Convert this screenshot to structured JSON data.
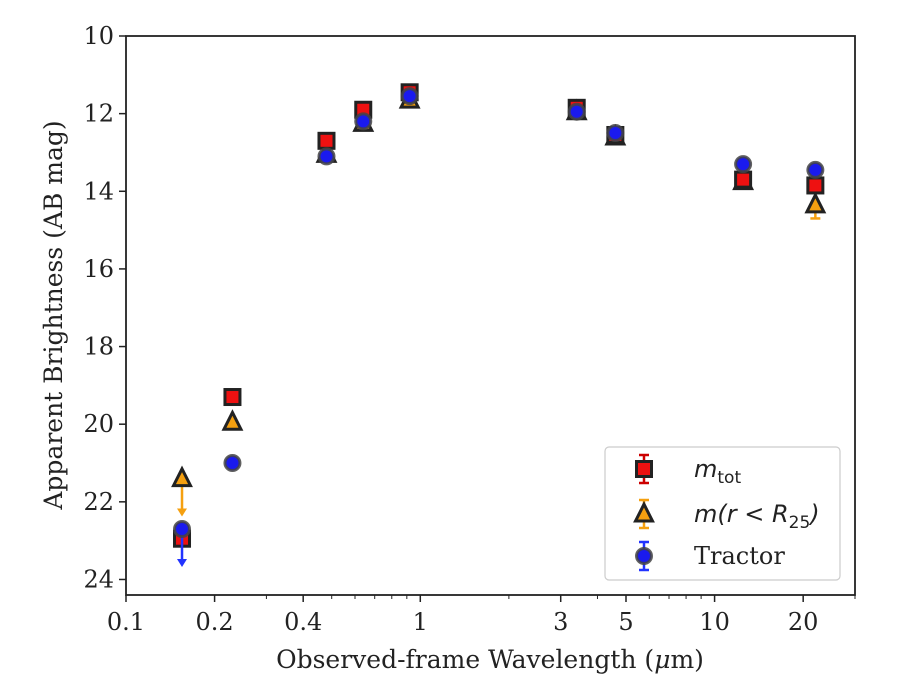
{
  "chart_data": {
    "type": "scatter",
    "title": "",
    "xlabel_prefix": "Observed-frame Wavelength (",
    "xlabel_mu": "μ",
    "xlabel_suffix": "m)",
    "ylabel": "Apparent Brightness (AB mag)",
    "x_scale": "log",
    "xlim": [
      0.1,
      30
    ],
    "ylim": [
      24.4,
      10
    ],
    "y_inverted": true,
    "x_ticks": [
      0.1,
      0.2,
      0.4,
      1,
      3,
      5,
      10,
      20
    ],
    "x_tick_labels": [
      "0.1",
      "0.2",
      "0.4",
      "1",
      "3",
      "5",
      "10",
      "20"
    ],
    "y_ticks": [
      10,
      12,
      14,
      16,
      18,
      20,
      22,
      24
    ],
    "y_tick_labels": [
      "10",
      "12",
      "14",
      "16",
      "18",
      "20",
      "22",
      "24"
    ],
    "grid": false,
    "legend_position": "lower-right",
    "series": [
      {
        "name": "m_tot",
        "label_main": "m",
        "label_sub": "tot",
        "marker": "square",
        "face_color": "#ee1111",
        "edge_color": "#222222",
        "errbar_color": "#cc0000",
        "points": [
          {
            "x": 0.155,
            "y": 22.95
          },
          {
            "x": 0.23,
            "y": 19.3
          },
          {
            "x": 0.48,
            "y": 12.7
          },
          {
            "x": 0.64,
            "y": 11.9
          },
          {
            "x": 0.92,
            "y": 11.45
          },
          {
            "x": 3.4,
            "y": 11.85
          },
          {
            "x": 4.6,
            "y": 12.55
          },
          {
            "x": 12.5,
            "y": 13.7
          },
          {
            "x": 22.0,
            "y": 13.85
          }
        ]
      },
      {
        "name": "m(r < R25)",
        "label_main": "m(r < R",
        "label_sub": "25",
        "label_end": ")",
        "marker": "triangle",
        "face_color": "#f5a010",
        "edge_color": "#222222",
        "errbar_color": "#f5a010",
        "points": [
          {
            "x": 0.155,
            "y": 21.4,
            "upper_limit": true
          },
          {
            "x": 0.23,
            "y": 19.95
          },
          {
            "x": 0.48,
            "y": 13.05
          },
          {
            "x": 0.64,
            "y": 12.25
          },
          {
            "x": 0.92,
            "y": 11.65
          },
          {
            "x": 3.4,
            "y": 11.95
          },
          {
            "x": 4.6,
            "y": 12.6
          },
          {
            "x": 12.5,
            "y": 13.75
          },
          {
            "x": 22.0,
            "y": 14.35,
            "err": 0.35
          }
        ]
      },
      {
        "name": "Tractor",
        "label_main": "Tractor",
        "marker": "circle",
        "face_color": "#1a1aee",
        "edge_color": "#444444",
        "errbar_color": "#2233ff",
        "points": [
          {
            "x": 0.155,
            "y": 22.7,
            "upper_limit": true
          },
          {
            "x": 0.23,
            "y": 21.0
          },
          {
            "x": 0.48,
            "y": 13.1
          },
          {
            "x": 0.64,
            "y": 12.2
          },
          {
            "x": 0.92,
            "y": 11.55
          },
          {
            "x": 3.4,
            "y": 11.95
          },
          {
            "x": 4.6,
            "y": 12.5
          },
          {
            "x": 12.5,
            "y": 13.3
          },
          {
            "x": 22.0,
            "y": 13.45
          }
        ]
      }
    ]
  }
}
